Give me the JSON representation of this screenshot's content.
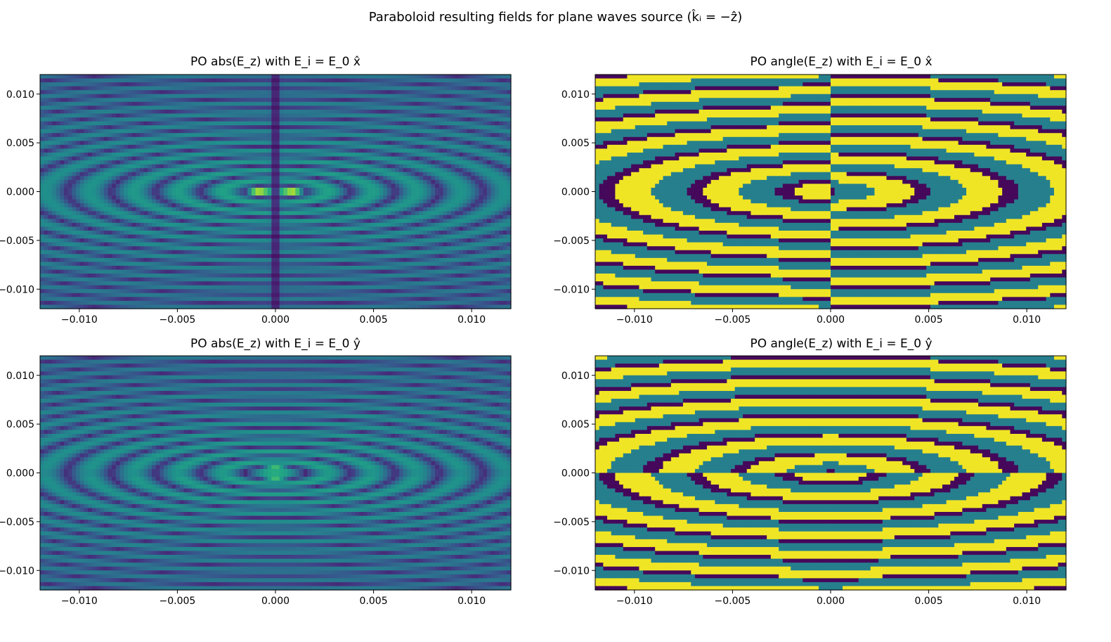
{
  "figure": {
    "suptitle_text": "Paraboloid resulting fields for plane waves source (k̂ᵢ = −ẑ)",
    "colormap": "viridis"
  },
  "chart_data": [
    {
      "type": "heatmap",
      "title": "PO abs(E_z) with E_i = E_0 x̂",
      "kind": "abs",
      "pol": "x",
      "xlim": [
        -0.012,
        0.012
      ],
      "ylim": [
        -0.012,
        0.012
      ],
      "xticks": [
        -0.01,
        -0.005,
        0.0,
        0.005,
        0.01
      ],
      "yticks": [
        0.01,
        0.005,
        0.0,
        -0.005,
        -0.01
      ],
      "xtick_labels": [
        "−0.010",
        "−0.005",
        "0.000",
        "0.005",
        "0.010"
      ],
      "ytick_labels": [
        "0.010",
        "0.005",
        "0.000",
        "−0.005",
        "−0.010"
      ],
      "peak_locations": [
        [
          -0.00095,
          0.0
        ],
        [
          0.00095,
          0.0
        ]
      ],
      "null_line": "x = 0"
    },
    {
      "type": "heatmap",
      "title": "PO angle(E_z) with E_i = E_0 x̂",
      "kind": "angle",
      "pol": "x",
      "xlim": [
        -0.012,
        0.012
      ],
      "ylim": [
        -0.012,
        0.012
      ],
      "xticks": [
        -0.01,
        -0.005,
        0.0,
        0.005,
        0.01
      ],
      "yticks": [
        0.01,
        0.005,
        0.0,
        -0.005,
        -0.01
      ],
      "xtick_labels": [
        "−0.010",
        "−0.005",
        "0.000",
        "0.005",
        "0.010"
      ],
      "ytick_labels": [
        "0.010",
        "0.005",
        "0.000",
        "−0.005",
        "−0.010"
      ],
      "phase_discontinuity": "x = 0"
    },
    {
      "type": "heatmap",
      "title": "PO abs(E_z) with E_i = E_0 ŷ",
      "kind": "abs",
      "pol": "y",
      "xlim": [
        -0.012,
        0.012
      ],
      "ylim": [
        -0.012,
        0.012
      ],
      "xticks": [
        -0.01,
        -0.005,
        0.0,
        0.005,
        0.01
      ],
      "yticks": [
        0.01,
        0.005,
        0.0,
        -0.005,
        -0.01
      ],
      "xtick_labels": [
        "−0.010",
        "−0.005",
        "0.000",
        "0.005",
        "0.010"
      ],
      "ytick_labels": [
        "0.010",
        "0.005",
        "0.000",
        "−0.005",
        "−0.010"
      ],
      "peak_locations": [
        [
          0.0,
          0.0005
        ],
        [
          0.0,
          -0.0005
        ]
      ],
      "null_line": "y = 0"
    },
    {
      "type": "heatmap",
      "title": "PO angle(E_z) with E_i = E_0 ŷ",
      "kind": "angle",
      "pol": "y",
      "xlim": [
        -0.012,
        0.012
      ],
      "ylim": [
        -0.012,
        0.012
      ],
      "xticks": [
        -0.01,
        -0.005,
        0.0,
        0.005,
        0.01
      ],
      "yticks": [
        0.01,
        0.005,
        0.0,
        -0.005,
        -0.01
      ],
      "xtick_labels": [
        "−0.010",
        "−0.005",
        "0.000",
        "0.005",
        "0.010"
      ],
      "ytick_labels": [
        "0.010",
        "0.005",
        "0.000",
        "−0.005",
        "−0.010"
      ],
      "phase_discontinuity": "y = 0"
    }
  ]
}
